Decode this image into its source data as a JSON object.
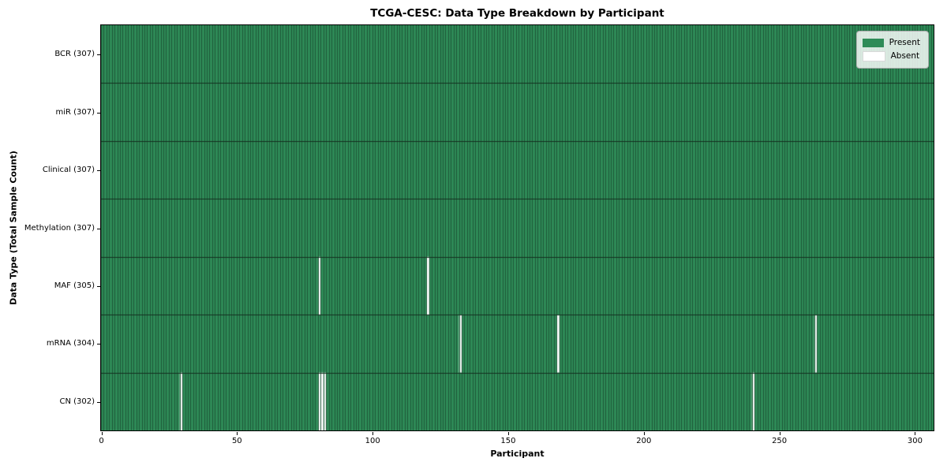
{
  "chart_data": {
    "type": "heatmap",
    "title": "TCGA-CESC: Data Type Breakdown by Participant",
    "xlabel": "Participant",
    "ylabel": "Data Type (Total Sample Count)",
    "n_participants": 307,
    "x_ticks": [
      0,
      50,
      100,
      150,
      200,
      250,
      300
    ],
    "xlim": [
      0,
      307
    ],
    "grid": false,
    "legend_position": "upper right",
    "legend": [
      {
        "label": "Present",
        "color": "#2e8b57"
      },
      {
        "label": "Absent",
        "color": "#ffffff"
      }
    ],
    "rows": [
      {
        "label": "BCR (307)",
        "data_type": "BCR",
        "present_count": 307,
        "absent_participants": []
      },
      {
        "label": "miR (307)",
        "data_type": "miR",
        "present_count": 307,
        "absent_participants": []
      },
      {
        "label": "Clinical (307)",
        "data_type": "Clinical",
        "present_count": 307,
        "absent_participants": []
      },
      {
        "label": "Methylation (307)",
        "data_type": "Methylation",
        "present_count": 307,
        "absent_participants": []
      },
      {
        "label": "MAF (305)",
        "data_type": "MAF",
        "present_count": 305,
        "absent_participants": [
          80,
          120
        ]
      },
      {
        "label": "mRNA (304)",
        "data_type": "mRNA",
        "present_count": 304,
        "absent_participants": [
          132,
          168,
          263
        ]
      },
      {
        "label": "CN (302)",
        "data_type": "CN",
        "present_count": 302,
        "absent_participants": [
          29,
          80,
          81,
          82,
          240
        ]
      }
    ],
    "colors": {
      "present": "#2e8b57",
      "absent": "#ffffff",
      "cell_edge": "#1d5837",
      "row_separator": "#142e1f",
      "axes_border": "#000000"
    }
  }
}
